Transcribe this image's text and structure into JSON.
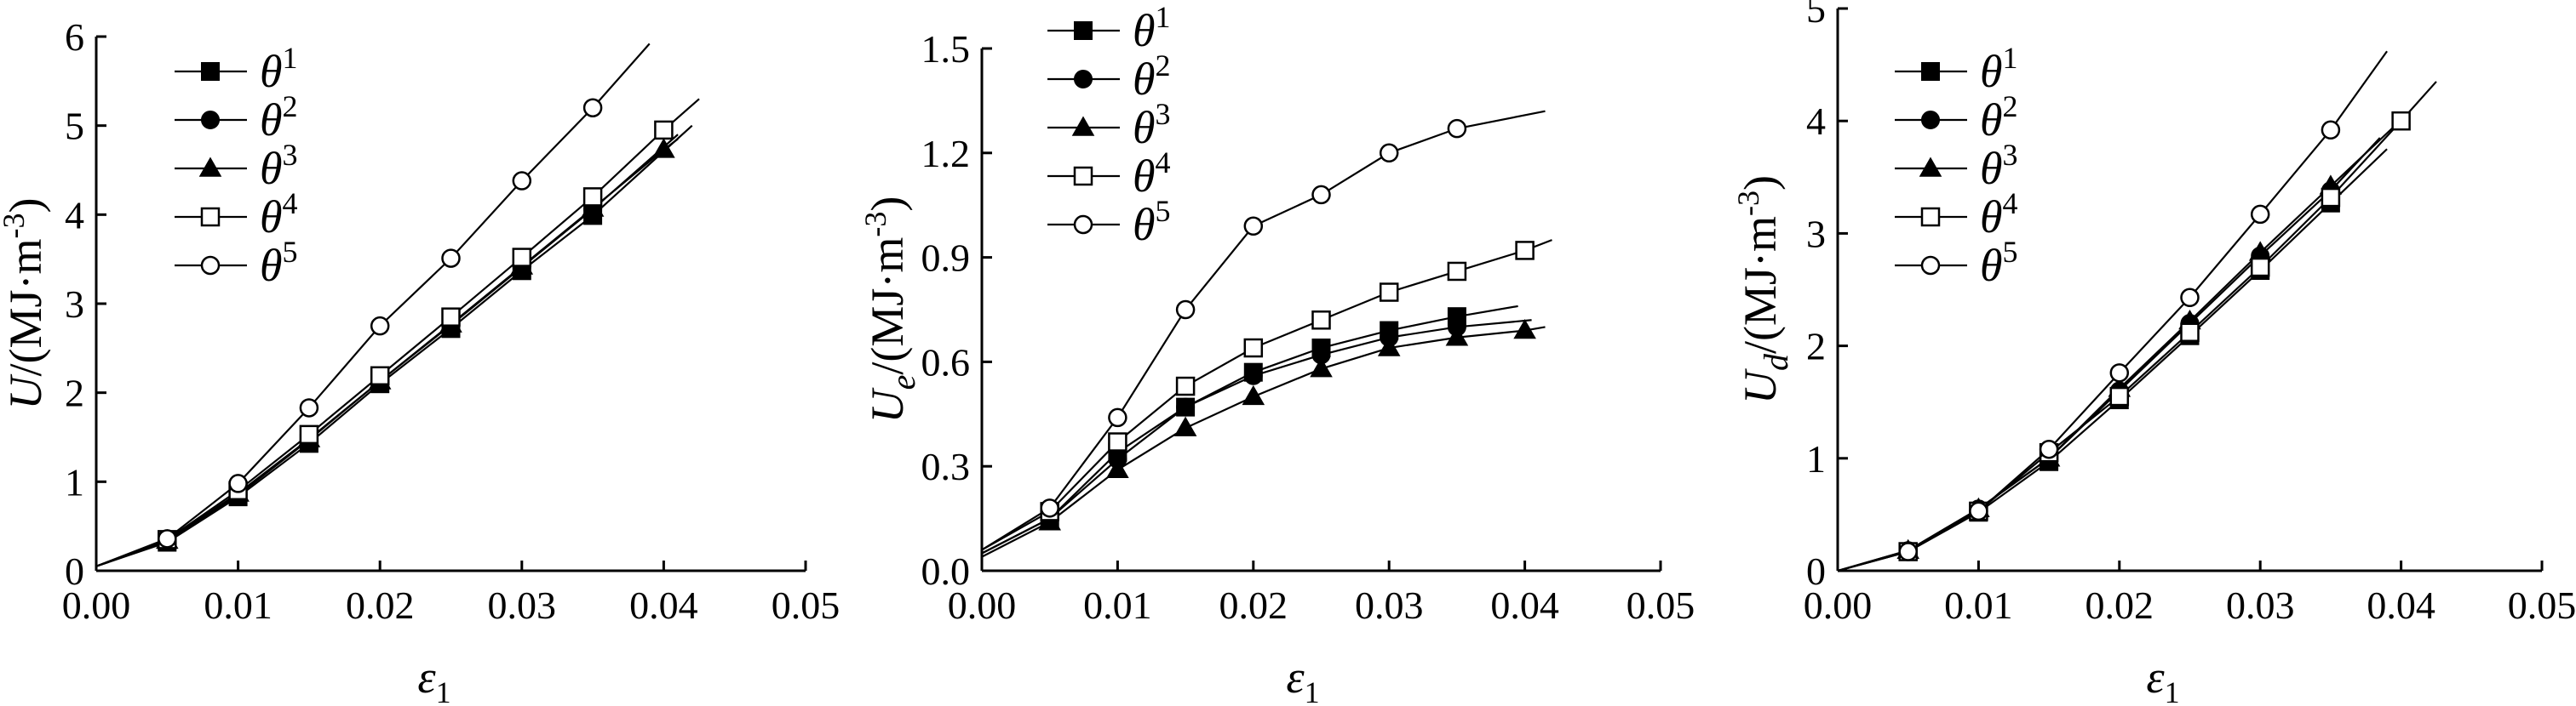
{
  "chart_data": [
    {
      "type": "line",
      "ylabel_symbol": "U",
      "ylabel_sub": "",
      "ylabel_unit": "/(MJ·m",
      "ylabel_sup": "-3",
      "ylabel_close": ")",
      "xlabel_symbol": "ε",
      "xlabel_sub": "1",
      "xlim": [
        0,
        0.05
      ],
      "ylim": [
        0,
        6
      ],
      "xticks": [
        "0.00",
        "0.01",
        "0.02",
        "0.03",
        "0.04",
        "0.05"
      ],
      "yticks": [
        "0",
        "1",
        "2",
        "3",
        "4",
        "5",
        "6"
      ],
      "legend": [
        "θ|1",
        "θ|2",
        "θ|3",
        "θ|4",
        "θ|5"
      ],
      "legend_pos": "top-left",
      "series": [
        {
          "marker": "square-filled",
          "x": [
            0,
            0.005,
            0.01,
            0.015,
            0.02,
            0.025,
            0.03,
            0.035
          ],
          "y": [
            0.05,
            0.32,
            0.83,
            1.43,
            2.1,
            2.72,
            3.37,
            3.99
          ],
          "end": [
            0.042,
            5.0
          ]
        },
        {
          "marker": "circle-filled",
          "x": [
            0,
            0.005,
            0.01,
            0.015,
            0.02,
            0.025,
            0.03,
            0.035
          ],
          "y": [
            0.05,
            0.33,
            0.85,
            1.47,
            2.13,
            2.76,
            3.41,
            4.06
          ],
          "end": [
            0.041,
            4.9
          ]
        },
        {
          "marker": "triangle-filled",
          "x": [
            0,
            0.005,
            0.01,
            0.015,
            0.02,
            0.025,
            0.03,
            0.035,
            0.04
          ],
          "y": [
            0.05,
            0.34,
            0.87,
            1.48,
            2.13,
            2.77,
            3.42,
            4.07,
            4.73
          ],
          "end": [
            0.041,
            4.85
          ]
        },
        {
          "marker": "square-open",
          "x": [
            0,
            0.005,
            0.01,
            0.015,
            0.02,
            0.025,
            0.03,
            0.035,
            0.04
          ],
          "y": [
            0.05,
            0.35,
            0.9,
            1.53,
            2.19,
            2.85,
            3.52,
            4.2,
            4.95
          ],
          "end": [
            0.0425,
            5.3
          ]
        },
        {
          "marker": "circle-open",
          "x": [
            0,
            0.005,
            0.01,
            0.015,
            0.02,
            0.025,
            0.03,
            0.035
          ],
          "y": [
            0.05,
            0.36,
            0.98,
            1.83,
            2.75,
            3.51,
            4.38,
            5.2
          ],
          "end": [
            0.039,
            5.92
          ]
        }
      ]
    },
    {
      "type": "line",
      "ylabel_symbol": "U",
      "ylabel_sub": "e",
      "ylabel_unit": "/(MJ·m",
      "ylabel_sup": "-3",
      "ylabel_close": ")",
      "xlabel_symbol": "ε",
      "xlabel_sub": "1",
      "xlim": [
        0,
        0.05
      ],
      "ylim": [
        0,
        1.5
      ],
      "xticks": [
        "0.00",
        "0.01",
        "0.02",
        "0.03",
        "0.04",
        "0.05"
      ],
      "yticks": [
        "0.0",
        "0.3",
        "0.6",
        "0.9",
        "1.2",
        "1.5"
      ],
      "legend": [
        "θ|1",
        "θ|2",
        "θ|3",
        "θ|4",
        "θ|5"
      ],
      "legend_pos": "top-left",
      "series": [
        {
          "marker": "square-filled",
          "x": [
            0,
            0.005,
            0.01,
            0.015,
            0.02,
            0.025,
            0.03,
            0.035
          ],
          "y": [
            0.05,
            0.15,
            0.34,
            0.47,
            0.57,
            0.64,
            0.69,
            0.73
          ],
          "end": [
            0.0395,
            0.76
          ]
        },
        {
          "marker": "circle-filled",
          "x": [
            0,
            0.005,
            0.01,
            0.015,
            0.02,
            0.025,
            0.03,
            0.035
          ],
          "y": [
            0.05,
            0.15,
            0.32,
            0.47,
            0.56,
            0.62,
            0.67,
            0.7
          ],
          "end": [
            0.0405,
            0.72
          ]
        },
        {
          "marker": "triangle-filled",
          "x": [
            0,
            0.005,
            0.01,
            0.015,
            0.02,
            0.025,
            0.03,
            0.035,
            0.04
          ],
          "y": [
            0.04,
            0.14,
            0.29,
            0.41,
            0.5,
            0.58,
            0.64,
            0.67,
            0.69
          ],
          "end": [
            0.0415,
            0.7
          ]
        },
        {
          "marker": "square-open",
          "x": [
            0,
            0.005,
            0.01,
            0.015,
            0.02,
            0.025,
            0.03,
            0.035,
            0.04
          ],
          "y": [
            0.06,
            0.17,
            0.37,
            0.53,
            0.64,
            0.72,
            0.8,
            0.86,
            0.92
          ],
          "end": [
            0.042,
            0.95
          ]
        },
        {
          "marker": "circle-open",
          "x": [
            0,
            0.005,
            0.01,
            0.015,
            0.02,
            0.025,
            0.03,
            0.035
          ],
          "y": [
            0.06,
            0.18,
            0.44,
            0.75,
            0.99,
            1.08,
            1.2,
            1.27
          ],
          "end": [
            0.0415,
            1.32
          ]
        }
      ]
    },
    {
      "type": "line",
      "ylabel_symbol": "U",
      "ylabel_sub": "d",
      "ylabel_unit": "/(MJ·m",
      "ylabel_sup": "-3",
      "ylabel_close": ")",
      "xlabel_symbol": "ε",
      "xlabel_sub": "1",
      "xlim": [
        0,
        0.05
      ],
      "ylim": [
        0,
        5
      ],
      "xticks": [
        "0.00",
        "0.01",
        "0.02",
        "0.03",
        "0.04",
        "0.05"
      ],
      "yticks": [
        "0",
        "1",
        "2",
        "3",
        "4",
        "5"
      ],
      "legend": [
        "θ|1",
        "θ|2",
        "θ|3",
        "θ|4",
        "θ|5"
      ],
      "legend_pos": "top-left",
      "series": [
        {
          "marker": "square-filled",
          "x": [
            0,
            0.005,
            0.01,
            0.015,
            0.02,
            0.025,
            0.03,
            0.035
          ],
          "y": [
            0.0,
            0.17,
            0.52,
            0.97,
            1.52,
            2.09,
            2.67,
            3.27
          ],
          "end": [
            0.039,
            3.75
          ]
        },
        {
          "marker": "circle-filled",
          "x": [
            0,
            0.005,
            0.01,
            0.015,
            0.02,
            0.025,
            0.03,
            0.035
          ],
          "y": [
            0.0,
            0.18,
            0.55,
            1.0,
            1.6,
            2.2,
            2.8,
            3.38
          ],
          "end": [
            0.0385,
            3.85
          ]
        },
        {
          "marker": "triangle-filled",
          "x": [
            0,
            0.005,
            0.01,
            0.015,
            0.02,
            0.025,
            0.03,
            0.035
          ],
          "y": [
            0.0,
            0.18,
            0.55,
            1.0,
            1.62,
            2.22,
            2.83,
            3.42
          ],
          "end": [
            0.0395,
            3.95
          ]
        },
        {
          "marker": "square-open",
          "x": [
            0,
            0.005,
            0.01,
            0.015,
            0.02,
            0.025,
            0.03,
            0.035,
            0.04
          ],
          "y": [
            0.0,
            0.17,
            0.53,
            1.05,
            1.55,
            2.12,
            2.7,
            3.32,
            4.0
          ],
          "end": [
            0.0425,
            4.35
          ]
        },
        {
          "marker": "circle-open",
          "x": [
            0,
            0.005,
            0.01,
            0.015,
            0.02,
            0.025,
            0.03,
            0.035
          ],
          "y": [
            0.0,
            0.17,
            0.53,
            1.08,
            1.76,
            2.43,
            3.17,
            3.92
          ],
          "end": [
            0.039,
            4.62
          ]
        }
      ]
    }
  ]
}
